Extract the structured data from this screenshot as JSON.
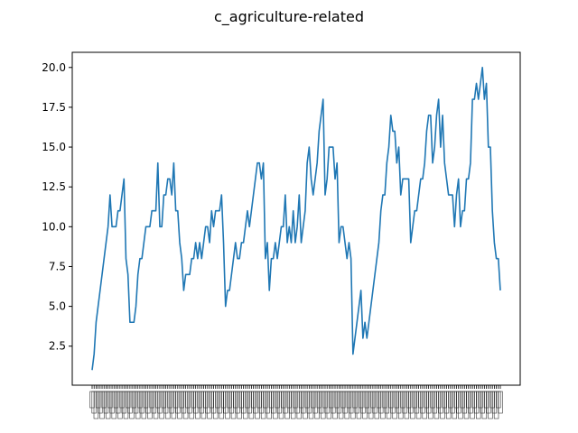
{
  "chart_data": {
    "type": "line",
    "title": "c_agriculture-related",
    "xlabel": "",
    "ylabel": "",
    "ylim": [
      0.05,
      20.95
    ],
    "yticks": [
      2.5,
      5.0,
      7.5,
      10.0,
      12.5,
      15.0,
      17.5,
      20.0
    ],
    "grid": false,
    "legend": "none",
    "colors": {
      "line": "#1f77b4",
      "axes": "#000000",
      "background": "#ffffff"
    },
    "x_tick_labels_note": "dense overlapping category tick labels (illegible)",
    "series": [
      {
        "values": [
          1,
          2,
          4,
          5,
          6,
          7,
          8,
          9,
          10,
          12,
          10,
          10,
          10,
          11,
          11,
          12,
          13,
          8,
          7,
          4,
          4,
          4,
          5,
          7,
          8,
          8,
          9,
          10,
          10,
          10,
          11,
          11,
          11,
          14,
          10,
          10,
          12,
          12,
          13,
          13,
          12,
          14,
          11,
          11,
          9,
          8,
          6,
          7,
          7,
          7,
          8,
          8,
          9,
          8,
          9,
          8,
          9,
          10,
          10,
          9,
          11,
          10,
          11,
          11,
          11,
          12,
          9,
          5,
          6,
          6,
          7,
          8,
          9,
          8,
          8,
          9,
          9,
          10,
          11,
          10,
          11,
          12,
          13,
          14,
          14,
          13,
          14,
          8,
          9,
          6,
          8,
          8,
          9,
          8,
          9,
          10,
          10,
          12,
          9,
          10,
          9,
          11,
          9,
          10,
          12,
          9,
          10,
          11,
          14,
          15,
          13,
          12,
          13,
          14,
          16,
          17,
          18,
          12,
          13,
          15,
          15,
          15,
          13,
          14,
          9,
          10,
          10,
          9,
          8,
          9,
          8,
          2,
          3,
          4,
          5,
          6,
          3,
          4,
          3,
          4,
          5,
          6,
          7,
          8,
          9,
          11,
          12,
          12,
          14,
          15,
          17,
          16,
          16,
          14,
          15,
          12,
          13,
          13,
          13,
          13,
          9,
          10,
          11,
          11,
          12,
          13,
          13,
          14,
          16,
          17,
          17,
          14,
          15,
          17,
          18,
          15,
          17,
          14,
          13,
          12,
          12,
          12,
          10,
          12,
          13,
          10,
          11,
          11,
          13,
          13,
          14,
          18,
          18,
          19,
          18,
          19,
          20,
          18,
          19,
          15,
          15,
          11,
          9,
          8,
          8,
          6
        ]
      }
    ]
  }
}
